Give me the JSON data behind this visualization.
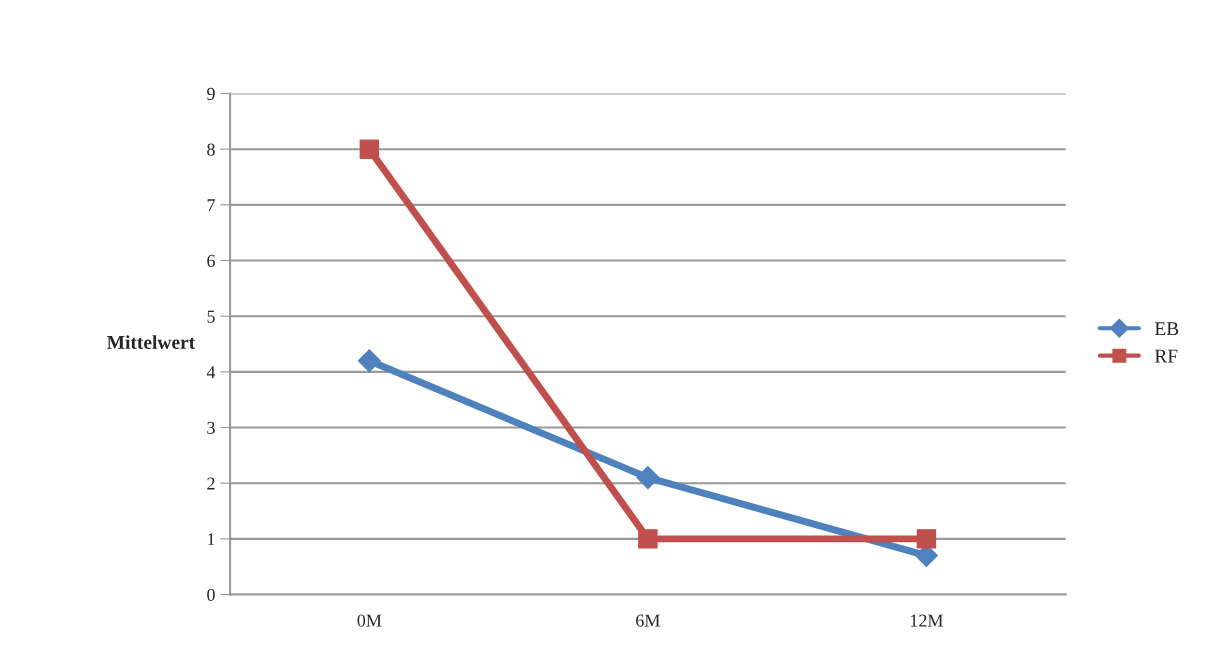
{
  "chart_data": {
    "type": "line",
    "ylabel": "Mittelwert",
    "categories": [
      "0M",
      "6M",
      "12M"
    ],
    "series": [
      {
        "name": "EB",
        "color": "#4f81bd",
        "marker": "diamond",
        "values": [
          4.2,
          2.1,
          0.7
        ]
      },
      {
        "name": "RF",
        "color": "#c0504d",
        "marker": "square",
        "values": [
          8.0,
          1.0,
          1.0
        ]
      }
    ],
    "ylim": [
      0,
      9
    ],
    "yticks": [
      0,
      1,
      2,
      3,
      4,
      5,
      6,
      7,
      8,
      9
    ],
    "grid": "y",
    "legend": "right"
  }
}
